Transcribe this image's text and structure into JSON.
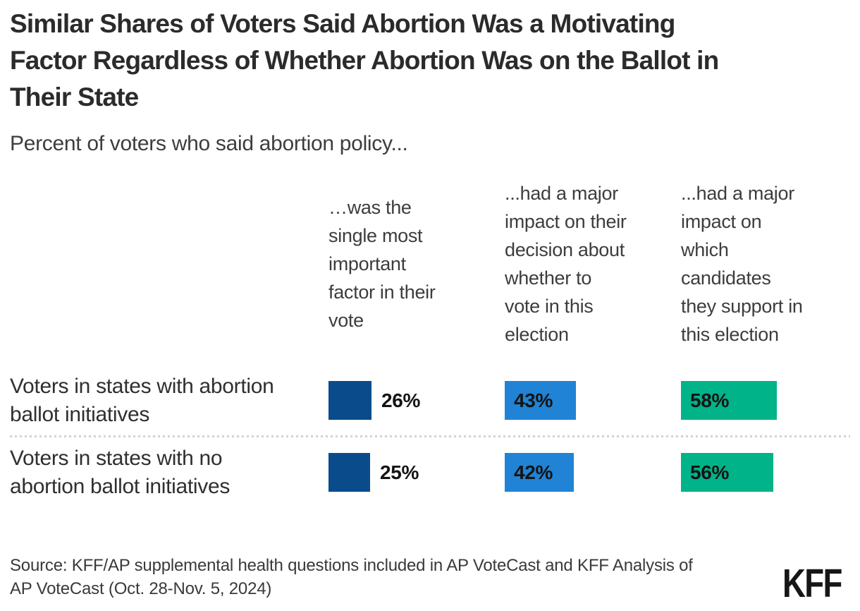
{
  "page": {
    "title": "Similar Shares of Voters Said Abortion Was a Motivating Factor Regardless of Whether Abortion Was on the Ballot in Their State",
    "title_lines": [
      "Similar Shares of Voters Said Abortion Was a Motivating",
      "Factor Regardless of Whether Abortion Was on the Ballot in",
      "Their State"
    ],
    "subtitle": "Percent of voters who said abortion policy...",
    "source": "Source: KFF/AP supplemental health questions included in AP VoteCast and KFF Analysis of AP VoteCast (Oct. 28-Nov. 5, 2024)",
    "source_lines": [
      "Source: KFF/AP supplemental health questions included in AP VoteCast and KFF Analysis of",
      "AP VoteCast (Oct. 28-Nov. 5, 2024)"
    ],
    "logo_text": "KFF"
  },
  "chart_data": {
    "type": "bar",
    "orientation": "horizontal",
    "unit": "%",
    "xlim": [
      0,
      100
    ],
    "grid": false,
    "legend_position": "none",
    "categories": [
      "Voters in states with abortion ballot initiatives",
      "Voters in states with no abortion ballot initiatives"
    ],
    "categories_lines": [
      [
        "Voters in states with abortion",
        "ballot initiatives"
      ],
      [
        "Voters in states with no",
        "abortion ballot initiatives"
      ]
    ],
    "series": [
      {
        "name": "…was the single most important factor in their vote",
        "name_lines": [
          "…was the",
          "single most",
          "important",
          "factor in their",
          "vote"
        ],
        "values": [
          26,
          25
        ],
        "labels": [
          "26%",
          "25%"
        ],
        "color": "#0a4c8b",
        "value_label_position": "outside"
      },
      {
        "name": "...had a major impact on their decision about whether to vote in this election",
        "name_lines": [
          "...had a major",
          "impact on their",
          "decision about",
          "whether to",
          "vote in this",
          "election"
        ],
        "values": [
          43,
          42
        ],
        "labels": [
          "43%",
          "42%"
        ],
        "color": "#2083d5",
        "value_label_position": "inside"
      },
      {
        "name": "...had a major impact on which candidates they support in this election",
        "name_lines": [
          "...had a major",
          "impact on",
          "which",
          "candidates",
          "they support in",
          "this election"
        ],
        "values": [
          58,
          56
        ],
        "labels": [
          "58%",
          "56%"
        ],
        "color": "#00b389",
        "value_label_position": "inside"
      }
    ],
    "colors": {
      "title_text": "#2b2b2b",
      "body_text": "#3d3d3d",
      "value_label_text": "#141414",
      "divider": "#d2d2d2",
      "background": "#ffffff"
    }
  }
}
